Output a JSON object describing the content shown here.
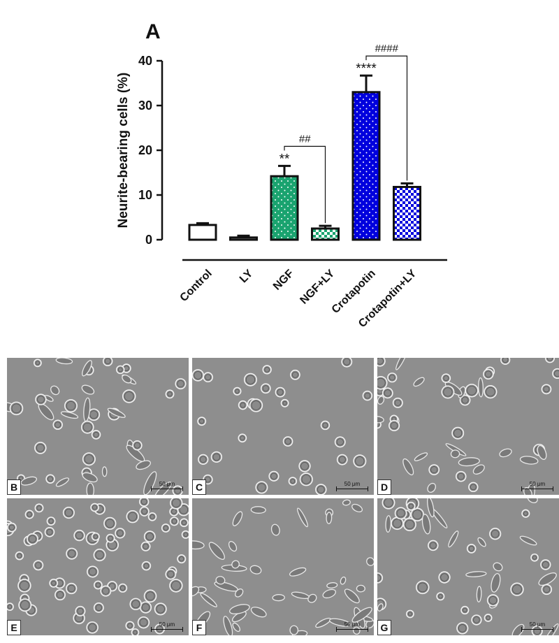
{
  "chart_data": {
    "type": "bar",
    "panel_label": "A",
    "ylabel": "Neurite-bearing cells (%)",
    "ylim": [
      0,
      40
    ],
    "yticks": [
      0,
      10,
      20,
      30,
      40
    ],
    "categories": [
      "Control",
      "LY",
      "NGF",
      "NGF+LY",
      "Crotapotin",
      "Crotapotin+LY"
    ],
    "values": [
      3.3,
      0.5,
      14.2,
      2.5,
      33.0,
      11.8
    ],
    "errors": [
      0.4,
      0.4,
      2.3,
      0.6,
      3.7,
      0.8
    ],
    "fills": [
      "white",
      "white",
      "green-dots",
      "green-checker",
      "blue-dots",
      "blue-checker"
    ],
    "significance": [
      {
        "category": "NGF",
        "label": "**"
      },
      {
        "category": "Crotapotin",
        "label": "****"
      }
    ],
    "comparisons": [
      {
        "from": "NGF",
        "to": "NGF+LY",
        "label": "##"
      },
      {
        "from": "Crotapotin",
        "to": "Crotapotin+LY",
        "label": "####"
      }
    ],
    "colors": {
      "green": "#1aa36f",
      "blue": "#0000dd"
    }
  },
  "micrographs": [
    {
      "label": "B",
      "scale": "50 μm"
    },
    {
      "label": "C",
      "scale": "50 μm"
    },
    {
      "label": "D",
      "scale": "50 μm"
    },
    {
      "label": "E",
      "scale": "50 μm"
    },
    {
      "label": "F",
      "scale": "50 μm"
    },
    {
      "label": "G",
      "scale": "50 μm"
    }
  ]
}
